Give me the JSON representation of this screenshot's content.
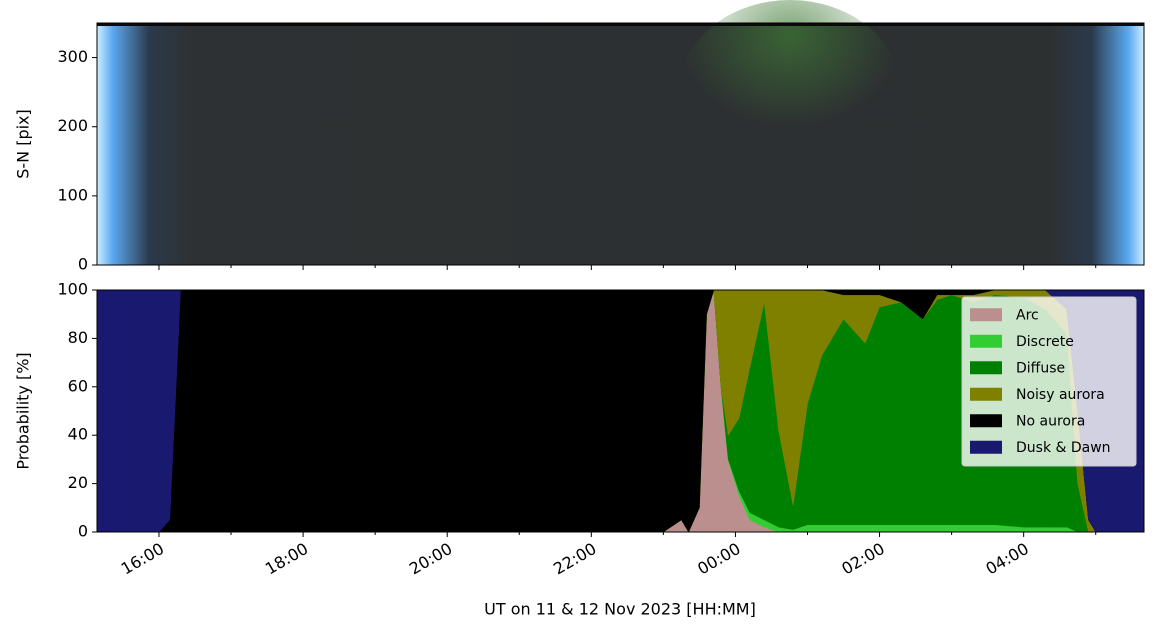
{
  "chart_data": [
    {
      "type": "image",
      "ylabel": "S-N [pix]",
      "ylim": [
        350,
        0
      ],
      "yticks": [
        0,
        100,
        200,
        300
      ]
    },
    {
      "type": "area",
      "stacked": true,
      "ylabel": "Probability [%]",
      "xlabel": "UT on 11 & 12 Nov 2023 [HH:MM]",
      "xlim": [
        15.14,
        29.67
      ],
      "ylim": [
        0,
        100
      ],
      "yticks": [
        0,
        20,
        40,
        60,
        80,
        100
      ],
      "xticks": [
        {
          "value": 16,
          "label": "16:00"
        },
        {
          "value": 18,
          "label": "18:00"
        },
        {
          "value": 20,
          "label": "20:00"
        },
        {
          "value": 22,
          "label": "22:00"
        },
        {
          "value": 24,
          "label": "00:00"
        },
        {
          "value": 26,
          "label": "02:00"
        },
        {
          "value": 28,
          "label": "04:00"
        }
      ],
      "xminorticks": [
        17,
        19,
        21,
        23,
        25,
        27,
        29
      ],
      "legend": "upper right",
      "x": [
        15.14,
        16.0,
        16.15,
        16.3,
        18,
        20,
        22,
        23.0,
        23.25,
        23.35,
        23.5,
        23.6,
        23.7,
        23.8,
        23.9,
        24.05,
        24.2,
        24.4,
        24.6,
        24.8,
        25.0,
        25.2,
        25.5,
        25.8,
        26.0,
        26.3,
        26.6,
        26.8,
        27.0,
        27.3,
        27.6,
        28.0,
        28.3,
        28.6,
        28.75,
        28.9,
        29.0,
        29.67
      ],
      "series": [
        {
          "name": "Arc",
          "color": "#bc8f8f",
          "values": [
            0,
            0,
            0,
            0,
            0,
            0,
            0,
            0,
            5,
            0,
            10,
            90,
            100,
            60,
            30,
            15,
            5,
            2,
            0,
            0,
            0,
            0,
            0,
            0,
            0,
            0,
            0,
            0,
            0,
            0,
            0,
            0,
            0,
            0,
            0,
            0,
            0,
            0
          ]
        },
        {
          "name": "Discrete",
          "color": "#32cd32",
          "values": [
            0,
            0,
            0,
            0,
            0,
            0,
            0,
            0,
            0,
            0,
            0,
            0,
            0,
            0,
            0,
            2,
            3,
            3,
            2,
            1,
            3,
            3,
            3,
            3,
            3,
            3,
            3,
            3,
            3,
            3,
            3,
            2,
            2,
            2,
            0,
            0,
            0,
            0
          ]
        },
        {
          "name": "Diffuse",
          "color": "#008000",
          "values": [
            0,
            0,
            0,
            0,
            0,
            0,
            0,
            0,
            0,
            0,
            0,
            0,
            0,
            0,
            10,
            30,
            60,
            90,
            40,
            10,
            50,
            70,
            85,
            75,
            90,
            92,
            85,
            93,
            95,
            92,
            95,
            95,
            90,
            80,
            20,
            0,
            0,
            0
          ]
        },
        {
          "name": "Noisy aurora",
          "color": "#808000",
          "values": [
            0,
            0,
            0,
            0,
            0,
            0,
            0,
            0,
            0,
            0,
            0,
            0,
            0,
            40,
            60,
            53,
            32,
            5,
            58,
            89,
            47,
            27,
            10,
            20,
            5,
            0,
            0,
            2,
            0,
            3,
            2,
            3,
            8,
            10,
            30,
            5,
            0,
            0
          ]
        },
        {
          "name": "No aurora",
          "color": "#000000",
          "values": [
            0,
            0,
            5,
            100,
            100,
            100,
            100,
            100,
            95,
            100,
            90,
            10,
            0,
            0,
            0,
            0,
            0,
            0,
            0,
            0,
            0,
            0,
            2,
            2,
            2,
            5,
            12,
            2,
            2,
            2,
            0,
            0,
            0,
            0,
            0,
            0,
            0,
            0
          ]
        },
        {
          "name": "Dusk & Dawn",
          "color": "#191970",
          "values": [
            100,
            100,
            95,
            0,
            0,
            0,
            0,
            0,
            0,
            0,
            0,
            0,
            0,
            0,
            0,
            0,
            0,
            0,
            0,
            0,
            0,
            0,
            0,
            0,
            0,
            0,
            0,
            0,
            0,
            0,
            0,
            0,
            0,
            8,
            50,
            95,
            100,
            100
          ]
        }
      ]
    }
  ]
}
